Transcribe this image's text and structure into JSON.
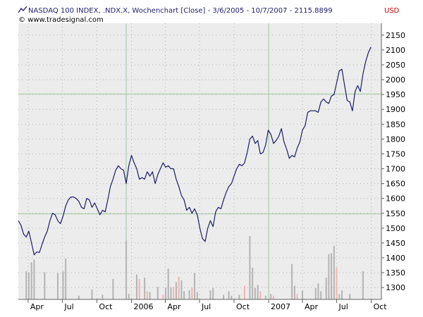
{
  "header": {
    "title": "NASDAQ 100 INDEX, .NDX.X, Wochenchart [Close] - 3/6/2005 - 10/7/2007 - 2115.8899",
    "copyright": "© www.tradesignal.com",
    "currency": "USD",
    "icon": "line-chart-icon"
  },
  "colors": {
    "background": "#ececec",
    "price_line": "#1c1c6e",
    "volume_up": "#b4b4b4",
    "volume_down": "#f0b4b4",
    "grid_dots": "#b4b4b4",
    "crosshair": "#a0c8a0",
    "currency": "#cc0000"
  },
  "chart_data": {
    "type": "line",
    "title": "NASDAQ 100 INDEX, .NDX.X, Wochenchart [Close] - 3/6/2005 - 10/7/2007 - 2115.8899",
    "xlabel": "",
    "ylabel": "",
    "y_axis_side": "right",
    "ylim": [
      1260,
      2190
    ],
    "y_ticks": [
      1300,
      1350,
      1400,
      1450,
      1500,
      1550,
      1600,
      1650,
      1700,
      1750,
      1800,
      1850,
      1900,
      1950,
      2000,
      2050,
      2100,
      2150
    ],
    "x_range": [
      "2005-03-06",
      "2007-10-28"
    ],
    "x_ticks": [
      {
        "date": "2005-04-01",
        "label": "Apr"
      },
      {
        "date": "2005-07-01",
        "label": "Jul"
      },
      {
        "date": "2005-10-01",
        "label": "Oct"
      },
      {
        "date": "2006-01-01",
        "label": "2006"
      },
      {
        "date": "2006-04-01",
        "label": "Apr"
      },
      {
        "date": "2006-07-01",
        "label": "Jul"
      },
      {
        "date": "2006-10-01",
        "label": "Oct"
      },
      {
        "date": "2007-01-01",
        "label": "2007"
      },
      {
        "date": "2007-04-01",
        "label": "Apr"
      },
      {
        "date": "2007-07-01",
        "label": "Jul"
      },
      {
        "date": "2007-10-01",
        "label": "Oct"
      }
    ],
    "grid": true,
    "crosshair": {
      "vertical_dates": [
        "2005-12-18",
        "2007-01-01"
      ],
      "horizontal_values": [
        1952,
        1548
      ]
    },
    "series": [
      {
        "values": [
          [
            "2005-03-06",
            1525
          ],
          [
            "2005-03-13",
            1510
          ],
          [
            "2005-03-20",
            1480
          ],
          [
            "2005-03-27",
            1470
          ],
          [
            "2005-04-03",
            1490
          ],
          [
            "2005-04-10",
            1450
          ],
          [
            "2005-04-17",
            1410
          ],
          [
            "2005-04-24",
            1420
          ],
          [
            "2005-05-01",
            1418
          ],
          [
            "2005-05-08",
            1445
          ],
          [
            "2005-05-15",
            1470
          ],
          [
            "2005-05-22",
            1490
          ],
          [
            "2005-05-29",
            1525
          ],
          [
            "2005-06-05",
            1550
          ],
          [
            "2005-06-12",
            1545
          ],
          [
            "2005-06-19",
            1525
          ],
          [
            "2005-06-26",
            1515
          ],
          [
            "2005-07-03",
            1540
          ],
          [
            "2005-07-10",
            1575
          ],
          [
            "2005-07-17",
            1595
          ],
          [
            "2005-07-24",
            1605
          ],
          [
            "2005-07-31",
            1605
          ],
          [
            "2005-08-07",
            1600
          ],
          [
            "2005-08-14",
            1590
          ],
          [
            "2005-08-21",
            1570
          ],
          [
            "2005-08-28",
            1565
          ],
          [
            "2005-09-04",
            1600
          ],
          [
            "2005-09-11",
            1595
          ],
          [
            "2005-09-18",
            1570
          ],
          [
            "2005-09-25",
            1585
          ],
          [
            "2005-10-02",
            1565
          ],
          [
            "2005-10-09",
            1545
          ],
          [
            "2005-10-16",
            1560
          ],
          [
            "2005-10-23",
            1555
          ],
          [
            "2005-10-30",
            1595
          ],
          [
            "2005-11-06",
            1640
          ],
          [
            "2005-11-13",
            1665
          ],
          [
            "2005-11-20",
            1695
          ],
          [
            "2005-11-27",
            1710
          ],
          [
            "2005-12-04",
            1700
          ],
          [
            "2005-12-11",
            1695
          ],
          [
            "2005-12-18",
            1650
          ],
          [
            "2005-12-25",
            1710
          ],
          [
            "2006-01-01",
            1745
          ],
          [
            "2006-01-08",
            1720
          ],
          [
            "2006-01-15",
            1700
          ],
          [
            "2006-01-22",
            1665
          ],
          [
            "2006-01-29",
            1670
          ],
          [
            "2006-02-05",
            1665
          ],
          [
            "2006-02-12",
            1690
          ],
          [
            "2006-02-19",
            1675
          ],
          [
            "2006-02-26",
            1690
          ],
          [
            "2006-03-05",
            1650
          ],
          [
            "2006-03-12",
            1680
          ],
          [
            "2006-03-19",
            1700
          ],
          [
            "2006-03-26",
            1720
          ],
          [
            "2006-04-02",
            1705
          ],
          [
            "2006-04-09",
            1710
          ],
          [
            "2006-04-16",
            1700
          ],
          [
            "2006-04-23",
            1700
          ],
          [
            "2006-04-30",
            1665
          ],
          [
            "2006-05-07",
            1640
          ],
          [
            "2006-05-14",
            1610
          ],
          [
            "2006-05-21",
            1595
          ],
          [
            "2006-05-28",
            1560
          ],
          [
            "2006-06-04",
            1570
          ],
          [
            "2006-06-11",
            1550
          ],
          [
            "2006-06-18",
            1565
          ],
          [
            "2006-06-25",
            1545
          ],
          [
            "2006-07-02",
            1500
          ],
          [
            "2006-07-09",
            1465
          ],
          [
            "2006-07-16",
            1455
          ],
          [
            "2006-07-23",
            1500
          ],
          [
            "2006-07-30",
            1525
          ],
          [
            "2006-08-06",
            1505
          ],
          [
            "2006-08-13",
            1555
          ],
          [
            "2006-08-20",
            1570
          ],
          [
            "2006-08-27",
            1565
          ],
          [
            "2006-09-03",
            1595
          ],
          [
            "2006-09-10",
            1620
          ],
          [
            "2006-09-17",
            1640
          ],
          [
            "2006-09-24",
            1650
          ],
          [
            "2006-10-01",
            1675
          ],
          [
            "2006-10-08",
            1700
          ],
          [
            "2006-10-15",
            1715
          ],
          [
            "2006-10-22",
            1710
          ],
          [
            "2006-10-29",
            1720
          ],
          [
            "2006-11-05",
            1755
          ],
          [
            "2006-11-12",
            1800
          ],
          [
            "2006-11-19",
            1810
          ],
          [
            "2006-11-26",
            1785
          ],
          [
            "2006-12-03",
            1795
          ],
          [
            "2006-12-10",
            1750
          ],
          [
            "2006-12-17",
            1755
          ],
          [
            "2006-12-24",
            1780
          ],
          [
            "2006-12-31",
            1830
          ],
          [
            "2007-01-07",
            1815
          ],
          [
            "2007-01-14",
            1785
          ],
          [
            "2007-01-21",
            1795
          ],
          [
            "2007-01-28",
            1810
          ],
          [
            "2007-02-04",
            1835
          ],
          [
            "2007-02-11",
            1790
          ],
          [
            "2007-02-18",
            1765
          ],
          [
            "2007-02-25",
            1735
          ],
          [
            "2007-03-04",
            1745
          ],
          [
            "2007-03-11",
            1740
          ],
          [
            "2007-03-18",
            1770
          ],
          [
            "2007-03-25",
            1790
          ],
          [
            "2007-04-01",
            1830
          ],
          [
            "2007-04-08",
            1845
          ],
          [
            "2007-04-15",
            1890
          ],
          [
            "2007-04-22",
            1895
          ],
          [
            "2007-04-29",
            1895
          ],
          [
            "2007-05-06",
            1895
          ],
          [
            "2007-05-13",
            1890
          ],
          [
            "2007-05-20",
            1925
          ],
          [
            "2007-05-27",
            1935
          ],
          [
            "2007-06-03",
            1925
          ],
          [
            "2007-06-10",
            1920
          ],
          [
            "2007-06-17",
            1945
          ],
          [
            "2007-06-24",
            1950
          ],
          [
            "2007-07-01",
            1990
          ],
          [
            "2007-07-08",
            2030
          ],
          [
            "2007-07-15",
            2035
          ],
          [
            "2007-07-22",
            1980
          ],
          [
            "2007-07-29",
            1930
          ],
          [
            "2007-08-05",
            1925
          ],
          [
            "2007-08-12",
            1895
          ],
          [
            "2007-08-19",
            1960
          ],
          [
            "2007-08-26",
            1980
          ],
          [
            "2007-09-02",
            1960
          ],
          [
            "2007-09-09",
            2020
          ],
          [
            "2007-09-16",
            2060
          ],
          [
            "2007-09-23",
            2090
          ],
          [
            "2007-09-30",
            2110
          ]
        ]
      }
    ],
    "volume": {
      "values": [
        [
          "2005-03-27",
          62,
          "up"
        ],
        [
          "2005-04-03",
          60,
          "up"
        ],
        [
          "2005-04-10",
          82,
          "up"
        ],
        [
          "2005-04-17",
          88,
          "up"
        ],
        [
          "2005-05-15",
          60,
          "up"
        ],
        [
          "2005-06-19",
          58,
          "up"
        ],
        [
          "2005-07-03",
          62,
          "up"
        ],
        [
          "2005-07-10",
          90,
          "up"
        ],
        [
          "2005-08-14",
          8,
          "up"
        ],
        [
          "2005-09-18",
          22,
          "up"
        ],
        [
          "2005-10-16",
          10,
          "up"
        ],
        [
          "2005-11-13",
          45,
          "up"
        ],
        [
          "2005-12-18",
          130,
          "up"
        ],
        [
          "2005-12-25",
          12,
          "up"
        ],
        [
          "2006-01-15",
          55,
          "up"
        ],
        [
          "2006-01-22",
          45,
          "down"
        ],
        [
          "2006-02-05",
          48,
          "up"
        ],
        [
          "2006-02-12",
          18,
          "down"
        ],
        [
          "2006-02-19",
          16,
          "up"
        ],
        [
          "2006-03-12",
          28,
          "up"
        ],
        [
          "2006-03-26",
          10,
          "down"
        ],
        [
          "2006-04-02",
          25,
          "up"
        ],
        [
          "2006-04-09",
          68,
          "up"
        ],
        [
          "2006-04-16",
          26,
          "up"
        ],
        [
          "2006-04-23",
          28,
          "down"
        ],
        [
          "2006-04-30",
          38,
          "up"
        ],
        [
          "2006-05-07",
          50,
          "down"
        ],
        [
          "2006-05-14",
          42,
          "up"
        ],
        [
          "2006-05-21",
          18,
          "up"
        ],
        [
          "2006-06-04",
          20,
          "up"
        ],
        [
          "2006-06-11",
          26,
          "down"
        ],
        [
          "2006-06-18",
          58,
          "up"
        ],
        [
          "2006-06-25",
          16,
          "up"
        ],
        [
          "2006-07-30",
          20,
          "up"
        ],
        [
          "2006-08-06",
          25,
          "up"
        ],
        [
          "2006-09-03",
          10,
          "up"
        ],
        [
          "2006-09-17",
          18,
          "up"
        ],
        [
          "2006-09-24",
          8,
          "up"
        ],
        [
          "2006-10-15",
          10,
          "up"
        ],
        [
          "2006-10-29",
          30,
          "down"
        ],
        [
          "2006-11-12",
          140,
          "up"
        ],
        [
          "2006-11-19",
          70,
          "up"
        ],
        [
          "2006-11-26",
          25,
          "up"
        ],
        [
          "2006-12-03",
          32,
          "up"
        ],
        [
          "2006-12-10",
          18,
          "down"
        ],
        [
          "2006-12-24",
          8,
          "up"
        ],
        [
          "2007-01-07",
          12,
          "up"
        ],
        [
          "2007-01-14",
          8,
          "down"
        ],
        [
          "2007-03-04",
          78,
          "up"
        ],
        [
          "2007-03-11",
          30,
          "up"
        ],
        [
          "2007-03-18",
          12,
          "down"
        ],
        [
          "2007-04-01",
          20,
          "up"
        ],
        [
          "2007-05-06",
          25,
          "up"
        ],
        [
          "2007-05-13",
          35,
          "up"
        ],
        [
          "2007-05-20",
          18,
          "up"
        ],
        [
          "2007-06-03",
          48,
          "up"
        ],
        [
          "2007-06-10",
          100,
          "up"
        ],
        [
          "2007-06-17",
          102,
          "up"
        ],
        [
          "2007-06-24",
          118,
          "up"
        ],
        [
          "2007-07-01",
          70,
          "down"
        ],
        [
          "2007-07-08",
          12,
          "up"
        ],
        [
          "2007-07-15",
          20,
          "up"
        ],
        [
          "2007-08-05",
          12,
          "up"
        ],
        [
          "2007-09-09",
          62,
          "up"
        ]
      ]
    }
  }
}
